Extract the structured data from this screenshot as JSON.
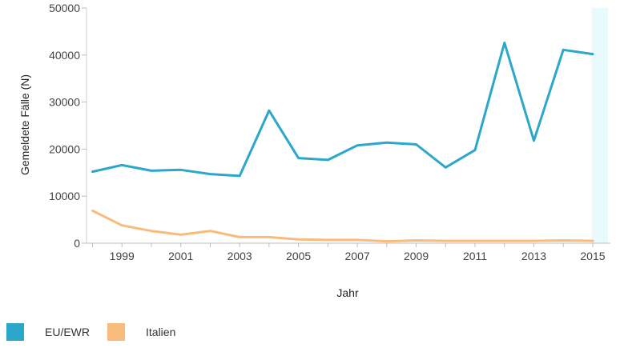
{
  "chart_data": {
    "type": "line",
    "xlabel": "Jahr",
    "ylabel": "Gemeldete Fälle (N)",
    "ylim": [
      0,
      50000
    ],
    "xlim": [
      1998,
      2015
    ],
    "yticks": [
      0,
      10000,
      20000,
      30000,
      40000,
      50000
    ],
    "ytick_labels": [
      "0",
      "10000",
      "20000",
      "30000",
      "40000",
      "50000"
    ],
    "xticks": [
      1999,
      2001,
      2003,
      2005,
      2007,
      2009,
      2011,
      2013,
      2015
    ],
    "xtick_labels": [
      "1999",
      "2001",
      "2003",
      "2005",
      "2007",
      "2009",
      "2011",
      "2013",
      "2015"
    ],
    "highlight": {
      "year": 2015,
      "color": "#e8fafc"
    },
    "x": [
      1998,
      1999,
      2000,
      2001,
      2002,
      2003,
      2004,
      2005,
      2006,
      2007,
      2008,
      2009,
      2010,
      2011,
      2012,
      2013,
      2014,
      2015
    ],
    "series": [
      {
        "name": "EU/EWR",
        "color": "#2aa7c9",
        "values": [
          15200,
          16600,
          15400,
          15600,
          14700,
          14300,
          28200,
          18100,
          17700,
          20800,
          21400,
          21000,
          16100,
          19800,
          42600,
          21800,
          41100,
          40200
        ]
      },
      {
        "name": "Italien",
        "color": "#f9bb7c",
        "values": [
          6900,
          3800,
          2600,
          1800,
          2600,
          1300,
          1300,
          800,
          700,
          700,
          400,
          600,
          500,
          500,
          500,
          500,
          600,
          500
        ]
      }
    ],
    "legend_position": "bottom-left"
  }
}
